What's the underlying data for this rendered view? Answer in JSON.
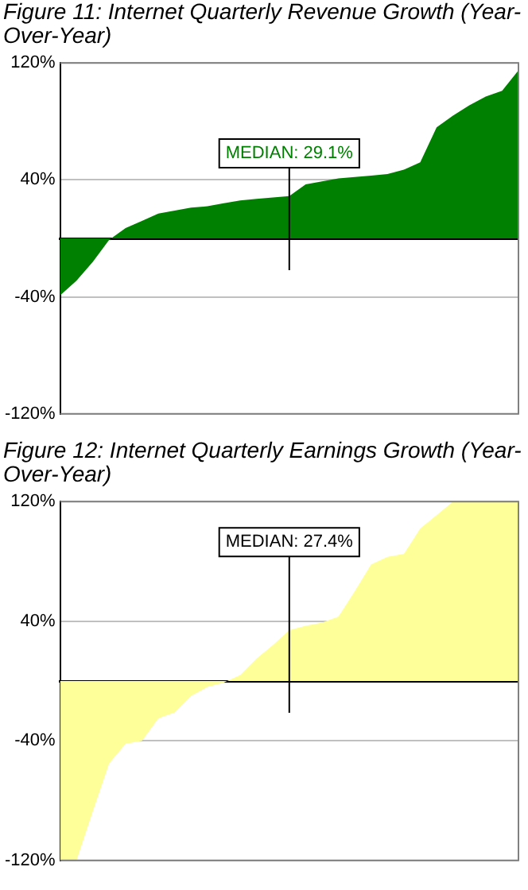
{
  "chart_data": [
    {
      "type": "area",
      "title": "Figure 11: Internet Quarterly Revenue Growth (Year-Over-Year)",
      "categories": [
        null,
        null,
        null,
        null,
        null,
        null,
        null,
        null,
        null,
        null,
        null,
        null,
        null,
        null,
        null,
        null,
        null,
        null,
        null,
        null,
        null,
        null,
        null,
        null,
        null,
        null,
        null,
        null,
        null
      ],
      "series": [
        {
          "color": "#008000",
          "values": [
            -39,
            -29,
            -16,
            -1,
            7,
            12,
            17,
            19,
            21,
            22,
            24,
            26,
            27,
            28,
            29,
            37,
            39,
            41,
            42,
            43,
            44,
            47,
            52,
            76,
            84,
            91,
            97,
            101,
            115
          ]
        }
      ],
      "ylim": [
        -120,
        120
      ],
      "yticks": [
        {
          "value": -120,
          "label": "-120%"
        },
        {
          "value": -40,
          "label": "-40%"
        },
        {
          "value": 40,
          "label": "40%"
        },
        {
          "value": 120,
          "label": "120%"
        }
      ],
      "grid": "y",
      "tick_labels": "y",
      "annotations": [
        "MEDIAN: 29.1%"
      ]
    },
    {
      "type": "area",
      "title": "Figure 12: Internet Quarterly Earnings Growth (Year-Over-Year)",
      "categories": [
        null,
        null,
        null,
        null,
        null,
        null,
        null,
        null,
        null,
        null,
        null,
        null,
        null,
        null,
        null,
        null,
        null,
        null,
        null,
        null,
        null,
        null,
        null,
        null,
        null,
        null,
        null,
        null,
        null
      ],
      "series": [
        {
          "color": "#ffff99",
          "values": [
            -120,
            -120,
            -87,
            -55,
            -42,
            -40,
            -25,
            -21,
            -10,
            -4,
            -1,
            4,
            15,
            24,
            34,
            37,
            39,
            43,
            60,
            78,
            83,
            85,
            102,
            111,
            120,
            120,
            120,
            120,
            120
          ]
        }
      ],
      "ylim": [
        -120,
        120
      ],
      "yticks": [
        {
          "value": -120,
          "label": "-120%"
        },
        {
          "value": -40,
          "label": "-40%"
        },
        {
          "value": 40,
          "label": "40%"
        },
        {
          "value": 120,
          "label": "120%"
        }
      ],
      "grid": "y",
      "tick_labels": "y",
      "annotations": [
        "MEDIAN: 27.4%"
      ]
    }
  ]
}
